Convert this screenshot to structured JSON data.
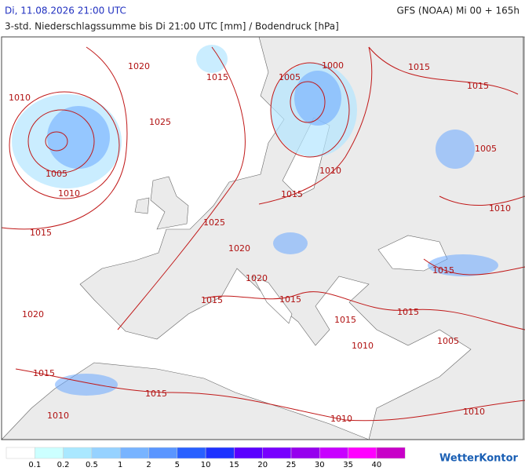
{
  "header": {
    "date": "Di, 11.08.2026 21:00 UTC",
    "model": "GFS (NOAA) Mi 00 + 165h",
    "subtitle": "3-std. Niederschlagssumme bis Di 21:00 UTC [mm] / Bodendruck [hPa]"
  },
  "isobar_labels": [
    "1020",
    "1015",
    "1010",
    "1025",
    "1005",
    "1010",
    "1015",
    "1005",
    "1000",
    "1015",
    "1015",
    "1005",
    "1010",
    "1015",
    "1025",
    "1010",
    "1020",
    "1020",
    "1015",
    "1015",
    "1015",
    "1020",
    "1015",
    "1015",
    "1010",
    "1005",
    "1015",
    "1015",
    "1010",
    "1010",
    "1010"
  ],
  "legend": {
    "labels": [
      "0.1",
      "0.2",
      "0.5",
      "1",
      "2",
      "5",
      "10",
      "15",
      "20",
      "25",
      "30",
      "35",
      "40"
    ],
    "colors": [
      "#ffffff",
      "#ccffff",
      "#aae8ff",
      "#96d2ff",
      "#78b4ff",
      "#5a96ff",
      "#2860ff",
      "#1e32ff",
      "#5a00ff",
      "#7800ff",
      "#9600ee",
      "#c800ff",
      "#ff00ff",
      "#c800c8"
    ]
  },
  "brand": "WetterKontor"
}
